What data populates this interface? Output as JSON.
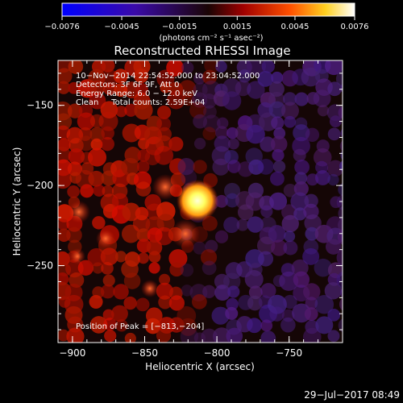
{
  "chart_data": {
    "type": "heatmap",
    "title": "Reconstructed RHESSI Image",
    "xlabel": "Heliocentric X (arcsec)",
    "ylabel": "Heliocentric Y (arcsec)",
    "x_range": [
      -910,
      -713
    ],
    "y_range": [
      -298,
      -122
    ],
    "x_ticks": [
      {
        "value": -900,
        "label": "−900"
      },
      {
        "value": -850,
        "label": "−850"
      },
      {
        "value": -800,
        "label": "−800"
      },
      {
        "value": -750,
        "label": "−750"
      }
    ],
    "y_ticks": [
      {
        "value": -150,
        "label": "−150"
      },
      {
        "value": -200,
        "label": "−200"
      },
      {
        "value": -250,
        "label": "−250"
      }
    ],
    "colorbar": {
      "range": [
        -0.0076,
        0.0076
      ],
      "ticks": [
        {
          "value": -0.0076,
          "label": "−0.0076"
        },
        {
          "value": -0.0045,
          "label": "−0.0045"
        },
        {
          "value": -0.0015,
          "label": "−0.0015"
        },
        {
          "value": 0.0015,
          "label": "0.0015"
        },
        {
          "value": 0.0045,
          "label": "0.0045"
        },
        {
          "value": 0.0076,
          "label": "0.0076"
        }
      ],
      "unit_label": "(photons cm⁻² s⁻¹ asec⁻²)"
    },
    "info_lines": [
      "10−Nov−2014 22:54:52.000 to 23:04:52.000",
      "Detectors: 3F 6F 9F, Att 0",
      "Energy Range: 6.0 − 12.0 keV",
      "Clean     Total counts: 2.59E+04"
    ],
    "peak_label": "Position of Peak = [−813,−204]",
    "peak": [
      -813,
      -204
    ],
    "colors": {
      "negative_tint": "#3c1c64",
      "positive_tint": "#a01000",
      "peak": "#ffff60"
    }
  },
  "footer": {
    "timestamp": "29−Jul−2017 08:49"
  }
}
